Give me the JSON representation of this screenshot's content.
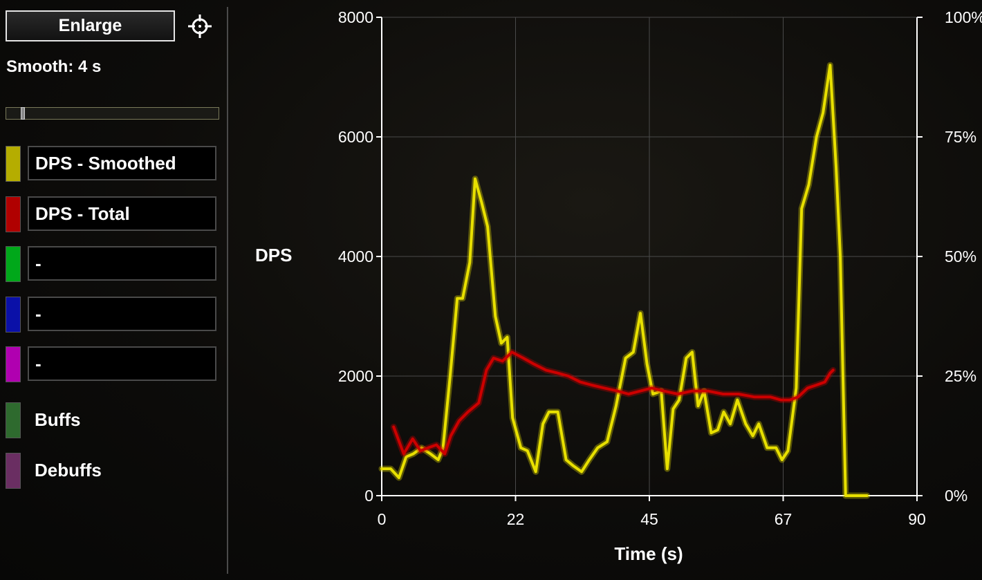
{
  "sidebar": {
    "enlarge_label": "Enlarge",
    "target_icon": "crosshair-icon",
    "smooth_label": "Smooth: 4 s",
    "smooth_slider_fraction": 0.07,
    "legend": [
      {
        "label": "DPS - Smoothed",
        "color": "#b5ad00",
        "boxed": true
      },
      {
        "label": "DPS - Total",
        "color": "#b00000",
        "boxed": true
      },
      {
        "label": "-",
        "color": "#00a81a",
        "boxed": true
      },
      {
        "label": "-",
        "color": "#0a10a8",
        "boxed": true
      },
      {
        "label": "-",
        "color": "#b000b0",
        "boxed": true
      },
      {
        "label": "Buffs",
        "color": "#2e6a2e",
        "boxed": false
      },
      {
        "label": "Debuffs",
        "color": "#6a2e62",
        "boxed": false
      }
    ]
  },
  "chart_data": {
    "type": "line",
    "ylabel": "DPS",
    "xlabel": "Time (s)",
    "xlim": [
      0,
      90
    ],
    "ylim": [
      0,
      8000
    ],
    "x_ticks": [
      "0",
      "22",
      "45",
      "67",
      "90"
    ],
    "y_ticks": [
      "0",
      "2000",
      "4000",
      "6000",
      "8000"
    ],
    "y2_ticks": [
      "0%",
      "25%",
      "50%",
      "75%",
      "100%"
    ],
    "grid": true,
    "series": [
      {
        "name": "DPS - Smoothed",
        "color": "#e8e000",
        "x": [
          0,
          1.5,
          2.9,
          4.1,
          5.3,
          6.7,
          8.2,
          9.5,
          10.3,
          11.5,
          12.7,
          13.6,
          14.8,
          15.7,
          16.8,
          17.8,
          19.1,
          20.1,
          21.1,
          22.0,
          23.4,
          24.5,
          25.9,
          27.1,
          28.1,
          29.6,
          31.0,
          32.2,
          33.6,
          34.9,
          36.3,
          37.9,
          39.4,
          41.0,
          42.3,
          43.5,
          44.6,
          45.6,
          47.0,
          48.0,
          49.0,
          50.0,
          51.2,
          52.2,
          53.2,
          54.2,
          55.4,
          56.5,
          57.5,
          58.6,
          59.8,
          61.2,
          62.4,
          63.4,
          64.8,
          66.3,
          67.3,
          68.3,
          69.7,
          70.6,
          71.8,
          73.1,
          74.2,
          75.4,
          76.4,
          77.1,
          78.0,
          79.4,
          81.6
        ],
        "y": [
          450,
          450,
          300,
          650,
          700,
          800,
          700,
          600,
          800,
          2000,
          3300,
          3300,
          3900,
          5300,
          4900,
          4500,
          3000,
          2550,
          2650,
          1300,
          800,
          750,
          400,
          1200,
          1400,
          1400,
          600,
          500,
          400,
          600,
          800,
          900,
          1500,
          2300,
          2400,
          3050,
          2200,
          1700,
          1750,
          450,
          1450,
          1600,
          2300,
          2400,
          1500,
          1750,
          1050,
          1100,
          1400,
          1200,
          1600,
          1200,
          1000,
          1200,
          800,
          800,
          600,
          750,
          1800,
          4800,
          5200,
          6000,
          6400,
          7200,
          5500,
          4000,
          0,
          0,
          0
        ]
      },
      {
        "name": "DPS - Total",
        "color": "#cc0000",
        "x": [
          2,
          3.7,
          5.2,
          6.5,
          7.8,
          9.2,
          10.6,
          11.6,
          13.0,
          14.5,
          16.3,
          17.6,
          18.8,
          20.3,
          21.9,
          23.8,
          25.6,
          27.6,
          29.6,
          31.4,
          33.4,
          35.3,
          37.4,
          39.6,
          41.5,
          43.5,
          45.4,
          47.4,
          49.8,
          52.2,
          54.8,
          57.4,
          60.0,
          62.7,
          65.4,
          67.1,
          68.6,
          70.0,
          71.6,
          73.1,
          74.5,
          75.4,
          75.9
        ],
        "y": [
          1150,
          700,
          950,
          750,
          800,
          850,
          700,
          1000,
          1250,
          1400,
          1550,
          2100,
          2300,
          2250,
          2400,
          2300,
          2200,
          2100,
          2050,
          2000,
          1900,
          1850,
          1800,
          1750,
          1700,
          1750,
          1800,
          1750,
          1700,
          1750,
          1750,
          1700,
          1700,
          1650,
          1650,
          1600,
          1600,
          1650,
          1800,
          1850,
          1900,
          2050,
          2100
        ]
      }
    ]
  }
}
